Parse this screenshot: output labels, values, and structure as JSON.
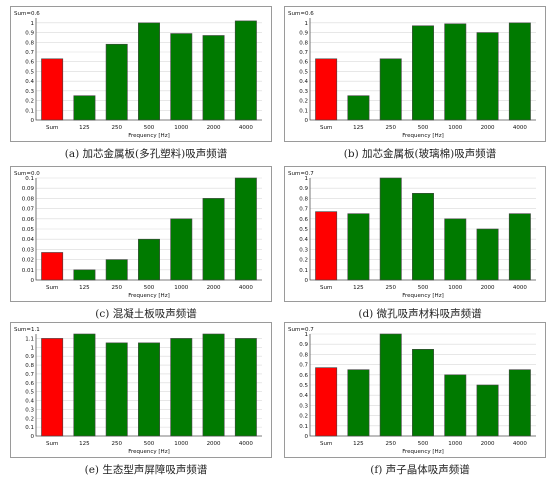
{
  "chart_data": [
    {
      "type": "bar",
      "title": "Sum=0.6",
      "caption": "(a) 加芯金属板(多孔塑料)吸声频谱",
      "xlabel": "Frequency [Hz]",
      "categories": [
        "Sum",
        "125",
        "250",
        "500",
        "1000",
        "2000",
        "4000"
      ],
      "values": [
        0.63,
        0.25,
        0.78,
        1.0,
        0.89,
        0.87,
        1.02
      ],
      "ylim": [
        0,
        1.05
      ],
      "yticks": [
        0,
        0.1,
        0.2,
        0.3,
        0.4,
        0.5,
        0.6,
        0.7,
        0.8,
        0.9,
        1
      ],
      "colors": [
        "#ff0000",
        "#007a00",
        "#007a00",
        "#007a00",
        "#007a00",
        "#007a00",
        "#007a00"
      ]
    },
    {
      "type": "bar",
      "title": "Sum=0.6",
      "caption": "(b) 加芯金属板(玻璃棉)吸声频谱",
      "xlabel": "Frequency [Hz]",
      "categories": [
        "Sum",
        "125",
        "250",
        "500",
        "1000",
        "2000",
        "4000"
      ],
      "values": [
        0.63,
        0.25,
        0.63,
        0.97,
        0.99,
        0.9,
        1.0
      ],
      "ylim": [
        0,
        1.05
      ],
      "yticks": [
        0,
        0.1,
        0.2,
        0.3,
        0.4,
        0.5,
        0.6,
        0.7,
        0.8,
        0.9,
        1
      ],
      "colors": [
        "#ff0000",
        "#007a00",
        "#007a00",
        "#007a00",
        "#007a00",
        "#007a00",
        "#007a00"
      ]
    },
    {
      "type": "bar",
      "title": "Sum=0.0",
      "caption": "(c) 混凝土板吸声频谱",
      "xlabel": "Frequency [Hz]",
      "categories": [
        "Sum",
        "125",
        "250",
        "500",
        "1000",
        "2000",
        "4000"
      ],
      "values": [
        0.027,
        0.01,
        0.02,
        0.04,
        0.06,
        0.08,
        0.1
      ],
      "ylim": [
        0,
        0.1
      ],
      "yticks": [
        0,
        0.01,
        0.02,
        0.03,
        0.04,
        0.05,
        0.06,
        0.07,
        0.08,
        0.09,
        0.1
      ],
      "colors": [
        "#ff0000",
        "#007a00",
        "#007a00",
        "#007a00",
        "#007a00",
        "#007a00",
        "#007a00"
      ]
    },
    {
      "type": "bar",
      "title": "Sum=0.7",
      "caption": "(d) 微孔吸声材料吸声频谱",
      "xlabel": "Frequency [Hz]",
      "categories": [
        "Sum",
        "125",
        "250",
        "500",
        "1000",
        "2000",
        "4000"
      ],
      "values": [
        0.67,
        0.65,
        1.0,
        0.85,
        0.6,
        0.5,
        0.65
      ],
      "ylim": [
        0,
        1.0
      ],
      "yticks": [
        0,
        0.1,
        0.2,
        0.3,
        0.4,
        0.5,
        0.6,
        0.7,
        0.8,
        0.9,
        1
      ],
      "colors": [
        "#ff0000",
        "#007a00",
        "#007a00",
        "#007a00",
        "#007a00",
        "#007a00",
        "#007a00"
      ]
    },
    {
      "type": "bar",
      "title": "Sum=1.1",
      "caption": "(e) 生态型声屏障吸声频谱",
      "xlabel": "Frequency [Hz]",
      "categories": [
        "Sum",
        "125",
        "250",
        "500",
        "1000",
        "2000",
        "4000"
      ],
      "values": [
        1.1,
        1.15,
        1.05,
        1.05,
        1.1,
        1.15,
        1.1
      ],
      "ylim": [
        0,
        1.15
      ],
      "yticks": [
        0,
        0.1,
        0.2,
        0.3,
        0.4,
        0.5,
        0.6,
        0.7,
        0.8,
        0.9,
        1,
        1.1
      ],
      "colors": [
        "#ff0000",
        "#007a00",
        "#007a00",
        "#007a00",
        "#007a00",
        "#007a00",
        "#007a00"
      ]
    },
    {
      "type": "bar",
      "title": "Sum=0.7",
      "caption": "(f) 声子晶体吸声频谱",
      "xlabel": "Frequency [Hz]",
      "categories": [
        "Sum",
        "125",
        "250",
        "500",
        "1000",
        "2000",
        "4000"
      ],
      "values": [
        0.67,
        0.65,
        1.0,
        0.85,
        0.6,
        0.5,
        0.65
      ],
      "ylim": [
        0,
        1.0
      ],
      "yticks": [
        0,
        0.1,
        0.2,
        0.3,
        0.4,
        0.5,
        0.6,
        0.7,
        0.8,
        0.9,
        1
      ],
      "colors": [
        "#ff0000",
        "#007a00",
        "#007a00",
        "#007a00",
        "#007a00",
        "#007a00",
        "#007a00"
      ]
    }
  ]
}
